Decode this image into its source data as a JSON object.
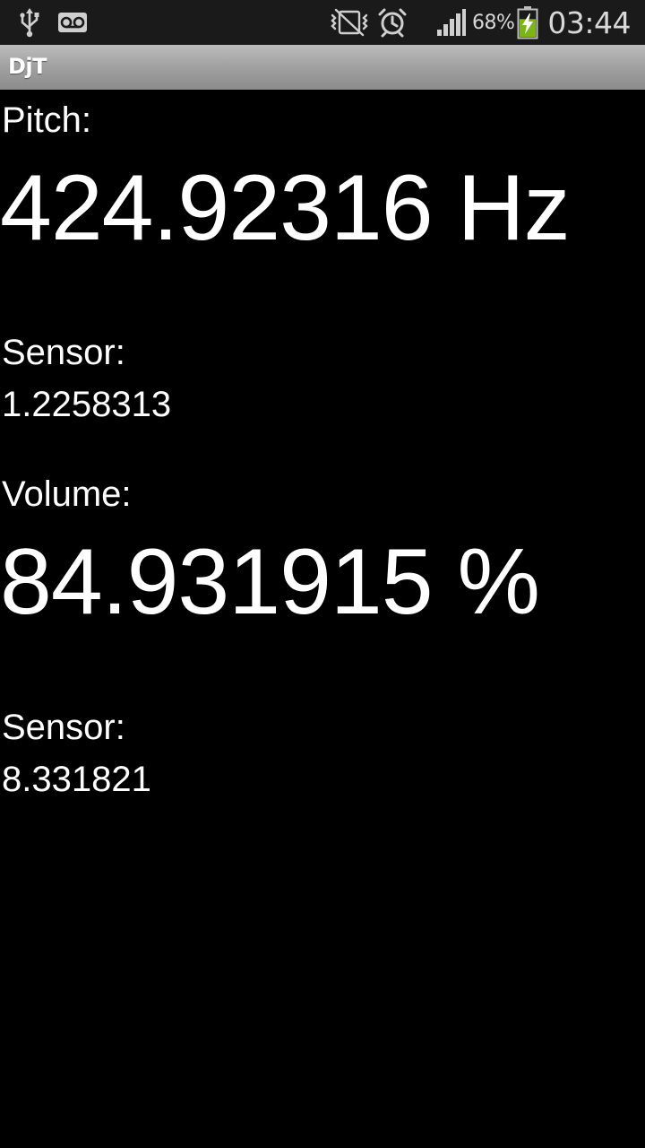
{
  "status_bar": {
    "icons_left": [
      "usb-icon",
      "voicemail-icon"
    ],
    "icons_right": [
      "mute-vibrate-icon",
      "alarm-icon",
      "signal-icon",
      "battery-charging-icon"
    ],
    "battery_percent": "68%",
    "time": "03:44",
    "battery_level": 0.68,
    "battery_color": "#7cb518"
  },
  "app": {
    "title": "DjT",
    "title_bar_color": "#a2a2a2"
  },
  "pitch": {
    "label": "Pitch:",
    "value": "424.92316 Hz",
    "sensor_label": "Sensor:",
    "sensor_value": "1.2258313"
  },
  "volume": {
    "label": "Volume:",
    "value": "84.931915 %",
    "sensor_label": "Sensor:",
    "sensor_value": "8.331821"
  }
}
